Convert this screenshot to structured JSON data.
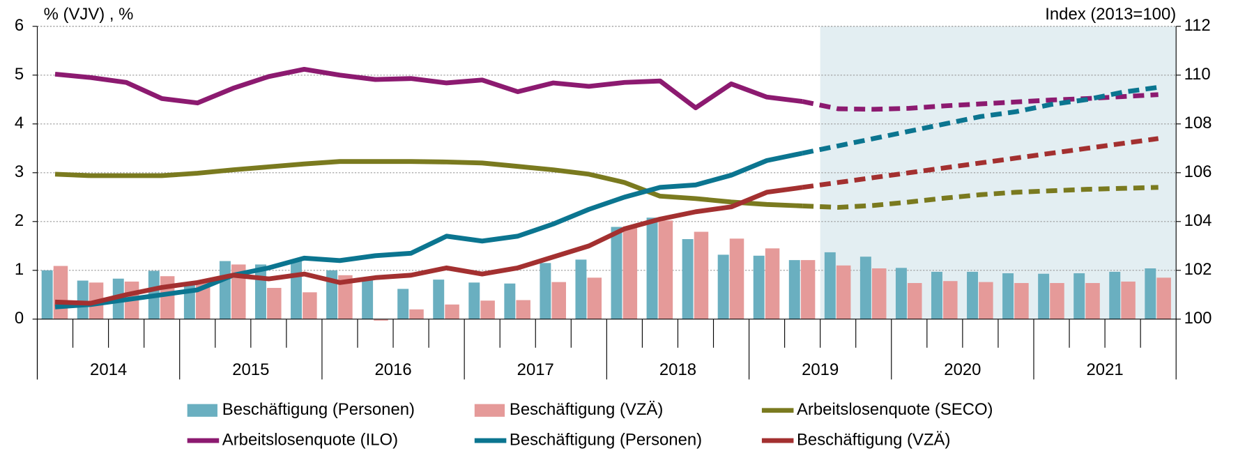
{
  "chart_data": {
    "type": "bar",
    "y_label": "% (VJV) , %",
    "y2_label": "Index (2013=100)",
    "years": [
      "2014",
      "2015",
      "2016",
      "2017",
      "2018",
      "2019",
      "2020",
      "2021"
    ],
    "ylim": [
      0,
      6
    ],
    "yticks": [
      0,
      1,
      2,
      3,
      4,
      5,
      6
    ],
    "y2lim": [
      100,
      112
    ],
    "y2ticks": [
      100,
      102,
      104,
      106,
      108,
      110,
      112
    ],
    "grid": true,
    "series": [
      {
        "name": "Beschäftigung (Personen)",
        "type": "bar",
        "color": "#6aafc0",
        "values": [
          1.0,
          0.79,
          0.83,
          0.99,
          0.76,
          1.19,
          1.12,
          1.22,
          1.0,
          0.85,
          0.62,
          0.81,
          0.75,
          0.73,
          1.15,
          1.22,
          1.89,
          2.08,
          1.64,
          1.32,
          1.3,
          1.21,
          1.37,
          1.28,
          1.05,
          0.97,
          0.97,
          0.94,
          0.93,
          0.94,
          0.97,
          1.04
        ]
      },
      {
        "name": "Beschäftigung (VZÄ)",
        "type": "bar",
        "color": "#e59a99",
        "values": [
          1.09,
          0.75,
          0.77,
          0.88,
          0.77,
          1.12,
          0.64,
          0.55,
          0.9,
          -0.03,
          0.2,
          0.3,
          0.38,
          0.39,
          0.76,
          0.85,
          1.9,
          2.02,
          1.79,
          1.65,
          1.45,
          1.21,
          1.1,
          1.04,
          0.74,
          0.78,
          0.76,
          0.74,
          0.74,
          0.74,
          0.77,
          0.85
        ]
      },
      {
        "name": "Arbeitslosenquote (SECO)",
        "type": "line",
        "color": "#7a7a1f",
        "values": [
          2.97,
          2.94,
          2.94,
          2.94,
          2.99,
          3.06,
          3.12,
          3.18,
          3.23,
          3.23,
          3.23,
          3.22,
          3.2,
          3.13,
          3.06,
          2.97,
          2.8,
          2.52,
          2.47,
          2.4,
          2.35,
          2.32,
          2.29,
          2.33,
          2.4,
          2.48,
          2.55,
          2.6,
          2.63,
          2.66,
          2.68,
          2.7
        ]
      },
      {
        "name": "Arbeitslosenquote (ILO)",
        "type": "line",
        "color": "#8c1a70",
        "values": [
          5.02,
          4.95,
          4.85,
          4.52,
          4.43,
          4.73,
          4.97,
          5.12,
          5.0,
          4.91,
          4.93,
          4.84,
          4.9,
          4.66,
          4.84,
          4.77,
          4.85,
          4.88,
          4.33,
          4.82,
          4.55,
          4.46,
          4.31,
          4.3,
          4.32,
          4.37,
          4.41,
          4.45,
          4.49,
          4.52,
          4.56,
          4.6
        ]
      },
      {
        "name": "Beschäftigung (Personen)",
        "type": "line",
        "axis": "y2",
        "color": "#0b7590",
        "values": [
          100.5,
          100.6,
          100.8,
          101.0,
          101.2,
          101.8,
          102.1,
          102.5,
          102.4,
          102.6,
          102.7,
          103.4,
          103.2,
          103.4,
          103.9,
          104.5,
          105.0,
          105.4,
          105.5,
          105.9,
          106.5,
          106.8,
          107.1,
          107.4,
          107.7,
          108.0,
          108.3,
          108.5,
          108.8,
          109.0,
          109.3,
          109.5
        ]
      },
      {
        "name": "Beschäftigung (VZÄ)",
        "type": "line",
        "axis": "y2",
        "color": "#a33030",
        "values": [
          100.7,
          100.65,
          101.0,
          101.3,
          101.5,
          101.8,
          101.65,
          101.85,
          101.5,
          101.7,
          101.8,
          102.1,
          101.85,
          102.1,
          102.55,
          103.0,
          103.7,
          104.1,
          104.4,
          104.6,
          105.2,
          105.4,
          105.6,
          105.8,
          106.0,
          106.2,
          106.4,
          106.6,
          106.8,
          107.0,
          107.2,
          107.4
        ]
      }
    ]
  }
}
